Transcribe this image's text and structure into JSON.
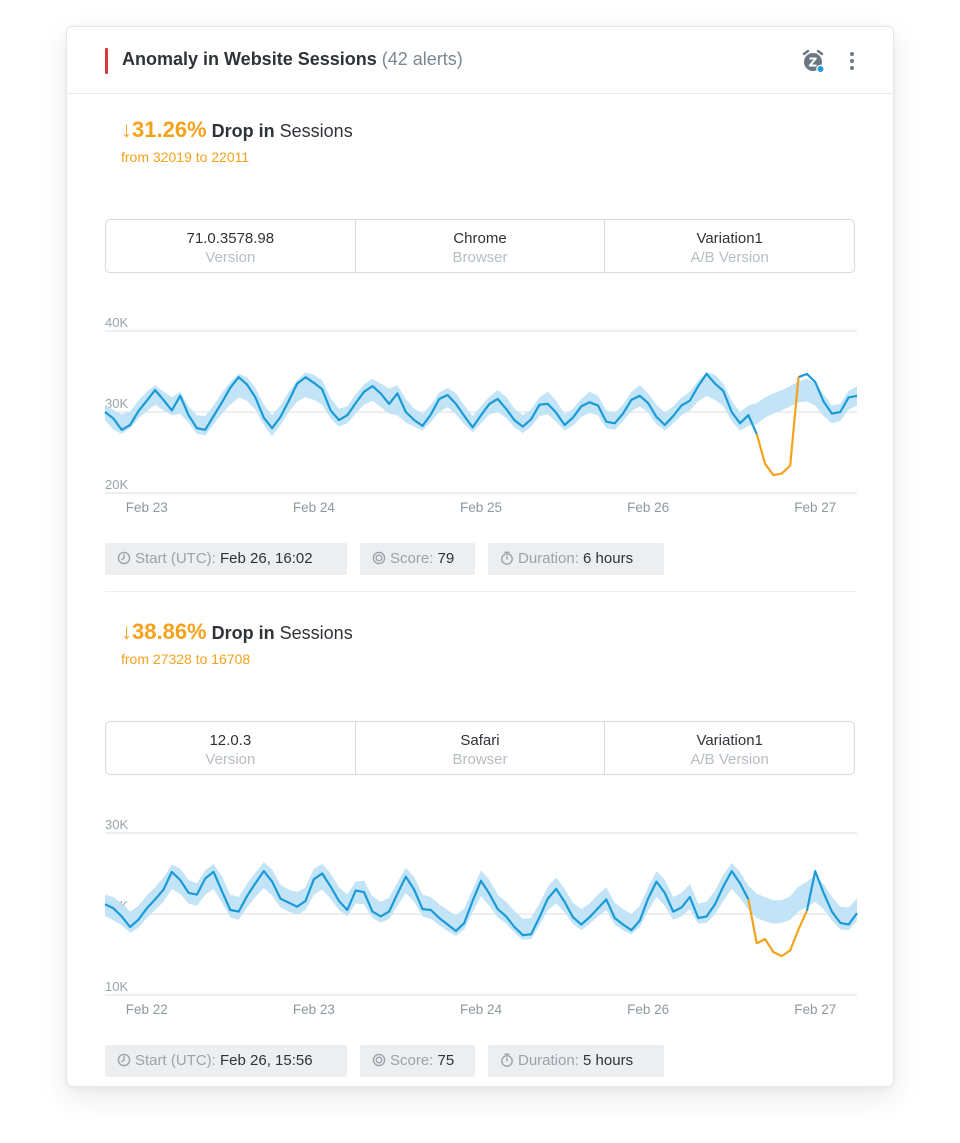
{
  "card": {
    "title": "Anomaly in Website Sessions",
    "alert_count": "(42 alerts)",
    "accent_color": "#d83a3a",
    "icons": [
      "snooze-alarm-icon",
      "more-vertical-icon"
    ]
  },
  "anomalies": [
    {
      "arrow": "↓",
      "percent": "31.26%",
      "drop_label": "Drop in",
      "metric": "Sessions",
      "range_text": "from 32019 to 22011",
      "dimensions": [
        {
          "value": "71.0.3578.98",
          "label": "Version"
        },
        {
          "value": "Chrome",
          "label": "Browser"
        },
        {
          "value": "Variation1",
          "label": "A/B Version"
        }
      ],
      "start_label": "Start (UTC):",
      "start_value": "Feb 26, 16:02",
      "score_label": "Score:",
      "score_value": "79",
      "duration_label": "Duration:",
      "duration_value": "6 hours"
    },
    {
      "arrow": "↓",
      "percent": "38.86%",
      "drop_label": "Drop in",
      "metric": "Sessions",
      "range_text": "from 27328 to 16708",
      "dimensions": [
        {
          "value": "12.0.3",
          "label": "Version"
        },
        {
          "value": "Safari",
          "label": "Browser"
        },
        {
          "value": "Variation1",
          "label": "A/B Version"
        }
      ],
      "start_label": "Start (UTC):",
      "start_value": "Feb 26, 15:56",
      "score_label": "Score:",
      "score_value": "75",
      "duration_label": "Duration:",
      "duration_value": "5 hours"
    }
  ],
  "chart_data": [
    {
      "type": "line",
      "title": "",
      "xlabel": "",
      "ylabel": "",
      "ylim": [
        20000,
        40000
      ],
      "yticks": [
        "40K",
        "30K",
        "20K"
      ],
      "ytick_values": [
        40000,
        30000,
        20000
      ],
      "x_ticks": [
        "Feb 23",
        "Feb 24",
        "Feb 25",
        "Feb 26",
        "Feb 27"
      ],
      "x_ticks_index": [
        5,
        25,
        45,
        65,
        85
      ],
      "anomaly_range_index": [
        78,
        83
      ],
      "colors": {
        "actual": "#1a9ad6",
        "band": "#bfe3f5",
        "anomaly": "#f5a21b",
        "grid": "#d9dcdf"
      },
      "grid": true,
      "series": [
        {
          "values": [
            30000,
            29200,
            27800,
            28400,
            30100,
            31400,
            32700,
            31500,
            30200,
            32000,
            29600,
            28000,
            27800,
            29500,
            31200,
            33000,
            34300,
            33400,
            31800,
            29300,
            28000,
            29400,
            31400,
            33500,
            34300,
            33600,
            32800,
            30200,
            29000,
            29600,
            31100,
            32500,
            33200,
            32300,
            31000,
            32300,
            30000,
            29000,
            28300,
            29700,
            31600,
            32100,
            31000,
            29500,
            28100,
            29600,
            31000,
            31600,
            30400,
            29000,
            28200,
            29100,
            30900,
            31000,
            29900,
            28400,
            29300,
            30700,
            31200,
            30800,
            28800,
            28600,
            29800,
            31500,
            32000,
            31100,
            29400,
            28400,
            29500,
            30800,
            31400,
            33200,
            34700,
            33500,
            32600,
            30000,
            28600,
            29600,
            27300,
            23600,
            22200,
            22400,
            23400,
            34300,
            34700,
            33700,
            31300,
            29800,
            30000,
            31800,
            32000
          ]
        }
      ],
      "band_lower": [
        29000,
        27800,
        27300,
        28000,
        29200,
        30100,
        30900,
        30200,
        29600,
        29800,
        28700,
        27300,
        27100,
        28500,
        29800,
        30900,
        31800,
        31400,
        30300,
        28400,
        27000,
        28400,
        30000,
        31300,
        31800,
        31500,
        30900,
        29200,
        28200,
        28600,
        29800,
        30900,
        31400,
        30600,
        29800,
        29600,
        28700,
        28200,
        27700,
        28800,
        30000,
        30600,
        29700,
        28500,
        27500,
        28600,
        29700,
        30000,
        29300,
        28100,
        27400,
        28200,
        29500,
        29700,
        28800,
        27700,
        28300,
        29400,
        29900,
        29600,
        28000,
        27800,
        28900,
        30100,
        30700,
        29900,
        28500,
        27700,
        28600,
        29600,
        30200,
        31300,
        32000,
        31500,
        30700,
        28900,
        27700,
        28300,
        28500,
        29300,
        29800,
        30200,
        30700,
        31200,
        31300,
        30800,
        29500,
        28600,
        28900,
        30300,
        30800
      ],
      "band_upper": [
        30800,
        30300,
        29700,
        30100,
        31400,
        32500,
        33300,
        32500,
        31800,
        32500,
        30700,
        29600,
        29500,
        30800,
        32400,
        33700,
        34700,
        34300,
        33000,
        30900,
        29600,
        30800,
        32500,
        33900,
        34900,
        34600,
        33900,
        31700,
        30400,
        30700,
        32200,
        33400,
        34100,
        33500,
        32900,
        33300,
        31600,
        30400,
        29800,
        30900,
        32400,
        33000,
        32300,
        30800,
        29500,
        30700,
        31900,
        32700,
        31900,
        30400,
        29600,
        30300,
        31800,
        32500,
        31400,
        29700,
        30400,
        31600,
        32500,
        32000,
        30200,
        29900,
        30900,
        32500,
        33300,
        32300,
        30900,
        29900,
        30700,
        31800,
        32500,
        33900,
        34900,
        34600,
        33500,
        31400,
        30000,
        30800,
        31100,
        31800,
        32300,
        32700,
        33200,
        33800,
        34100,
        33600,
        32200,
        30800,
        31000,
        32600,
        33200
      ]
    },
    {
      "type": "line",
      "title": "",
      "xlabel": "",
      "ylabel": "",
      "ylim": [
        10000,
        30000
      ],
      "yticks": [
        "30K",
        "20K",
        "10K"
      ],
      "ytick_values": [
        30000,
        20000,
        10000
      ],
      "x_ticks": [
        "Feb 22",
        "Feb 23",
        "Feb 24",
        "Feb 26",
        "Feb 27"
      ],
      "x_ticks_index": [
        5,
        25,
        45,
        65,
        85
      ],
      "anomaly_range_index": [
        77,
        84
      ],
      "colors": {
        "actual": "#1a9ad6",
        "band": "#bfe3f5",
        "anomaly": "#f5a21b",
        "grid": "#d9dcdf"
      },
      "grid": true,
      "series": [
        {
          "values": [
            21200,
            20700,
            19700,
            18400,
            19300,
            20700,
            21800,
            23000,
            25200,
            24200,
            22600,
            22400,
            24400,
            25200,
            22800,
            20500,
            20300,
            22200,
            23800,
            25300,
            24000,
            21900,
            21400,
            20900,
            21600,
            24300,
            25000,
            23400,
            21600,
            20500,
            22900,
            22700,
            20300,
            19700,
            20300,
            22500,
            24600,
            23000,
            20600,
            20500,
            19500,
            18700,
            17900,
            18900,
            21600,
            24100,
            22500,
            20600,
            19700,
            18400,
            17400,
            17500,
            19600,
            21900,
            23100,
            21500,
            19600,
            18700,
            19600,
            20700,
            21800,
            19500,
            18700,
            18000,
            19200,
            21900,
            24000,
            22600,
            20300,
            20800,
            22100,
            19500,
            19700,
            21200,
            23400,
            25300,
            23800,
            21800,
            16400,
            16900,
            15300,
            14800,
            15500,
            18100,
            20400,
            25300,
            22600,
            20300,
            18900,
            18700,
            20100
          ]
        }
      ],
      "band_lower": [
        19800,
        19200,
        18600,
        17700,
        18300,
        19500,
        20500,
        21500,
        23100,
        22500,
        21300,
        21000,
        22400,
        23100,
        21400,
        19600,
        19300,
        20800,
        22100,
        23200,
        22300,
        20800,
        20300,
        19900,
        20500,
        22400,
        23000,
        21900,
        20500,
        19700,
        21300,
        21200,
        19500,
        18900,
        19400,
        21000,
        22600,
        21500,
        19700,
        19400,
        18600,
        17900,
        17300,
        18100,
        20200,
        22200,
        21000,
        19600,
        18800,
        17700,
        16800,
        16900,
        18600,
        20500,
        21300,
        20200,
        18800,
        18000,
        18800,
        19700,
        20500,
        18700,
        18000,
        17500,
        18400,
        20400,
        22100,
        21000,
        19300,
        19700,
        20600,
        18800,
        18900,
        20000,
        21600,
        23100,
        22000,
        20500,
        19500,
        19100,
        18800,
        18900,
        19300,
        20300,
        20900,
        21500,
        20600,
        19200,
        18100,
        18000,
        19200
      ],
      "band_upper": [
        22400,
        22100,
        21300,
        20300,
        21000,
        22300,
        23300,
        24500,
        26100,
        25600,
        24200,
        23800,
        25400,
        26200,
        24600,
        22400,
        22100,
        23700,
        25100,
        26400,
        25500,
        23600,
        23000,
        22700,
        23300,
        25600,
        26200,
        25000,
        23300,
        22400,
        24000,
        24100,
        22200,
        21500,
        22000,
        23900,
        25700,
        24600,
        22400,
        22100,
        21200,
        20500,
        19800,
        20700,
        23000,
        25400,
        24200,
        22400,
        21500,
        20400,
        19400,
        19500,
        21300,
        23400,
        24500,
        23100,
        21400,
        20600,
        21300,
        22400,
        23300,
        21400,
        20600,
        20000,
        21000,
        23300,
        25300,
        24200,
        22100,
        22600,
        23700,
        21300,
        21500,
        22900,
        24800,
        26300,
        25200,
        23500,
        22500,
        22100,
        21700,
        21700,
        22200,
        23400,
        24000,
        24700,
        23700,
        22100,
        20900,
        20800,
        21900
      ]
    }
  ]
}
